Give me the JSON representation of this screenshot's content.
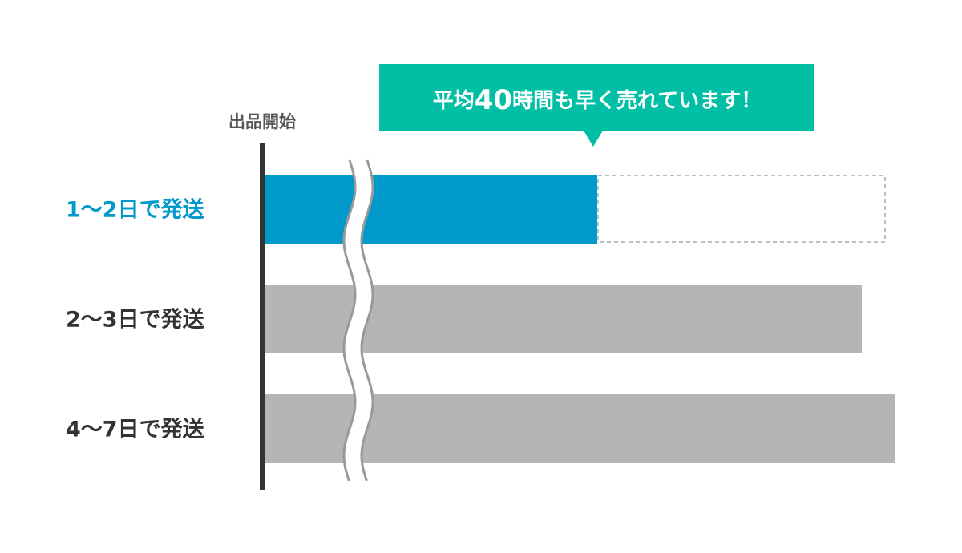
{
  "start_label": "出品開始",
  "callout": {
    "prefix": "平均",
    "number": "40",
    "suffix": "時間も早く売れています！"
  },
  "rows": [
    {
      "label": "1〜2日で発送"
    },
    {
      "label": "2〜3日で発送"
    },
    {
      "label": "4〜7日で発送"
    }
  ]
}
